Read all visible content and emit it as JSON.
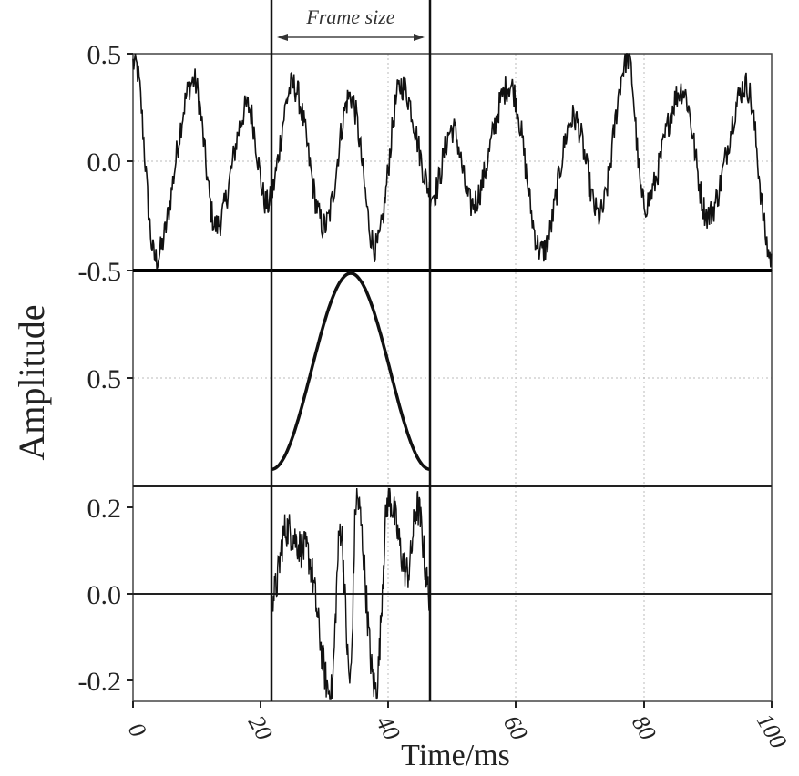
{
  "chart_data": {
    "type": "line",
    "title": "",
    "xlabel": "Time/ms",
    "ylabel": "Amplitude",
    "xlim": [
      0,
      100
    ],
    "x_ticks": [
      "0",
      "20",
      "40",
      "60",
      "80",
      "100"
    ],
    "grid": true,
    "annotation": {
      "text": "Frame size",
      "frame_start_ms": 21.7,
      "frame_end_ms": 46.5
    },
    "panels": [
      {
        "name": "original-signal",
        "y_ticks": [
          "0.5",
          "0.0",
          "-0.5"
        ],
        "ylim": [
          -0.5,
          0.5
        ],
        "description": "Noisy quasi-periodic speech-like waveform across 0-100 ms",
        "approx_peaks": [
          {
            "x": 0.3,
            "y": 0.45
          },
          {
            "x": 3.5,
            "y": -0.45
          },
          {
            "x": 9.5,
            "y": 0.37
          },
          {
            "x": 13,
            "y": -0.3
          },
          {
            "x": 18,
            "y": 0.25
          },
          {
            "x": 21,
            "y": -0.2
          },
          {
            "x": 25,
            "y": 0.35
          },
          {
            "x": 30,
            "y": -0.3
          },
          {
            "x": 34,
            "y": 0.3
          },
          {
            "x": 38,
            "y": -0.4
          },
          {
            "x": 42,
            "y": 0.35
          },
          {
            "x": 47,
            "y": -0.15
          },
          {
            "x": 50,
            "y": 0.15
          },
          {
            "x": 53,
            "y": -0.2
          },
          {
            "x": 59,
            "y": 0.35
          },
          {
            "x": 64,
            "y": -0.42
          },
          {
            "x": 69,
            "y": 0.2
          },
          {
            "x": 73,
            "y": -0.25
          },
          {
            "x": 77.5,
            "y": 0.48
          },
          {
            "x": 80,
            "y": -0.2
          },
          {
            "x": 86,
            "y": 0.33
          },
          {
            "x": 90,
            "y": -0.25
          },
          {
            "x": 96,
            "y": 0.35
          },
          {
            "x": 100,
            "y": -0.45
          }
        ]
      },
      {
        "name": "window-function",
        "y_ticks": [
          "0.5"
        ],
        "ylim": [
          0,
          1
        ],
        "description": "Hamming window spanning the frame (21.7-46.5 ms), peak 1.0 at ~34 ms, edges ~0.08"
      },
      {
        "name": "windowed-frame",
        "y_ticks": [
          "0.2",
          "0.0",
          "-0.2"
        ],
        "ylim": [
          -0.25,
          0.25
        ],
        "description": "Signal multiplied by window, nonzero only within the frame",
        "approx_peaks": [
          {
            "x": 22,
            "y": 0.0
          },
          {
            "x": 24,
            "y": 0.15
          },
          {
            "x": 27,
            "y": 0.1
          },
          {
            "x": 31,
            "y": -0.23
          },
          {
            "x": 32.5,
            "y": 0.15
          },
          {
            "x": 34,
            "y": -0.2
          },
          {
            "x": 35,
            "y": 0.22
          },
          {
            "x": 38,
            "y": -0.22
          },
          {
            "x": 40,
            "y": 0.22
          },
          {
            "x": 43,
            "y": 0.05
          },
          {
            "x": 44.5,
            "y": 0.2
          },
          {
            "x": 46.5,
            "y": 0.0
          }
        ]
      }
    ]
  },
  "labels": {
    "xlabel": "Time/ms",
    "ylabel": "Amplitude",
    "frame_size": "Frame size",
    "top_ticks": [
      "0.5",
      "0.0",
      "-0.5"
    ],
    "mid_ticks": [
      "0.5"
    ],
    "bot_ticks": [
      "0.2",
      "0.0",
      "-0.2"
    ],
    "x_ticks": [
      "0",
      "20",
      "40",
      "60",
      "80",
      "100"
    ]
  }
}
